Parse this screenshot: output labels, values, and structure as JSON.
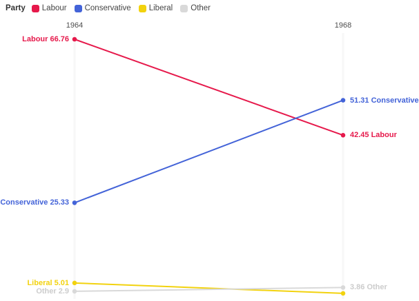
{
  "legend": {
    "title": "Party",
    "items": [
      {
        "label": "Labour",
        "color": "#e6194b"
      },
      {
        "label": "Conservative",
        "color": "#4363d8"
      },
      {
        "label": "Liberal",
        "color": "#f2d20e"
      },
      {
        "label": "Other",
        "color": "#d9d9d9"
      }
    ]
  },
  "chart_data": {
    "type": "line",
    "subtype": "slope",
    "title": "",
    "x": [
      "1964",
      "1968"
    ],
    "value_range_visible": [
      2.3,
      66.76
    ],
    "grid": "faint vertical line at each year column",
    "legend_position": "top-left",
    "series": [
      {
        "name": "Labour",
        "color": "#e6194b",
        "values": [
          66.76,
          42.45
        ],
        "start_label": "Labour 66.76",
        "end_label": "42.45 Labour"
      },
      {
        "name": "Conservative",
        "color": "#4363d8",
        "values": [
          25.33,
          51.31
        ],
        "start_label": "Conservative 25.33",
        "end_label": "51.31 Conservative"
      },
      {
        "name": "Liberal",
        "color": "#f2d20e",
        "values": [
          5.01,
          2.38
        ],
        "end_value_estimated": true,
        "start_label": "Liberal 5.01",
        "end_label": ""
      },
      {
        "name": "Other",
        "color": "#d9d9d9",
        "label_color": "#cccccc",
        "values": [
          2.9,
          3.86
        ],
        "start_label": "Other 2.9",
        "end_label": "3.86 Other"
      }
    ]
  }
}
